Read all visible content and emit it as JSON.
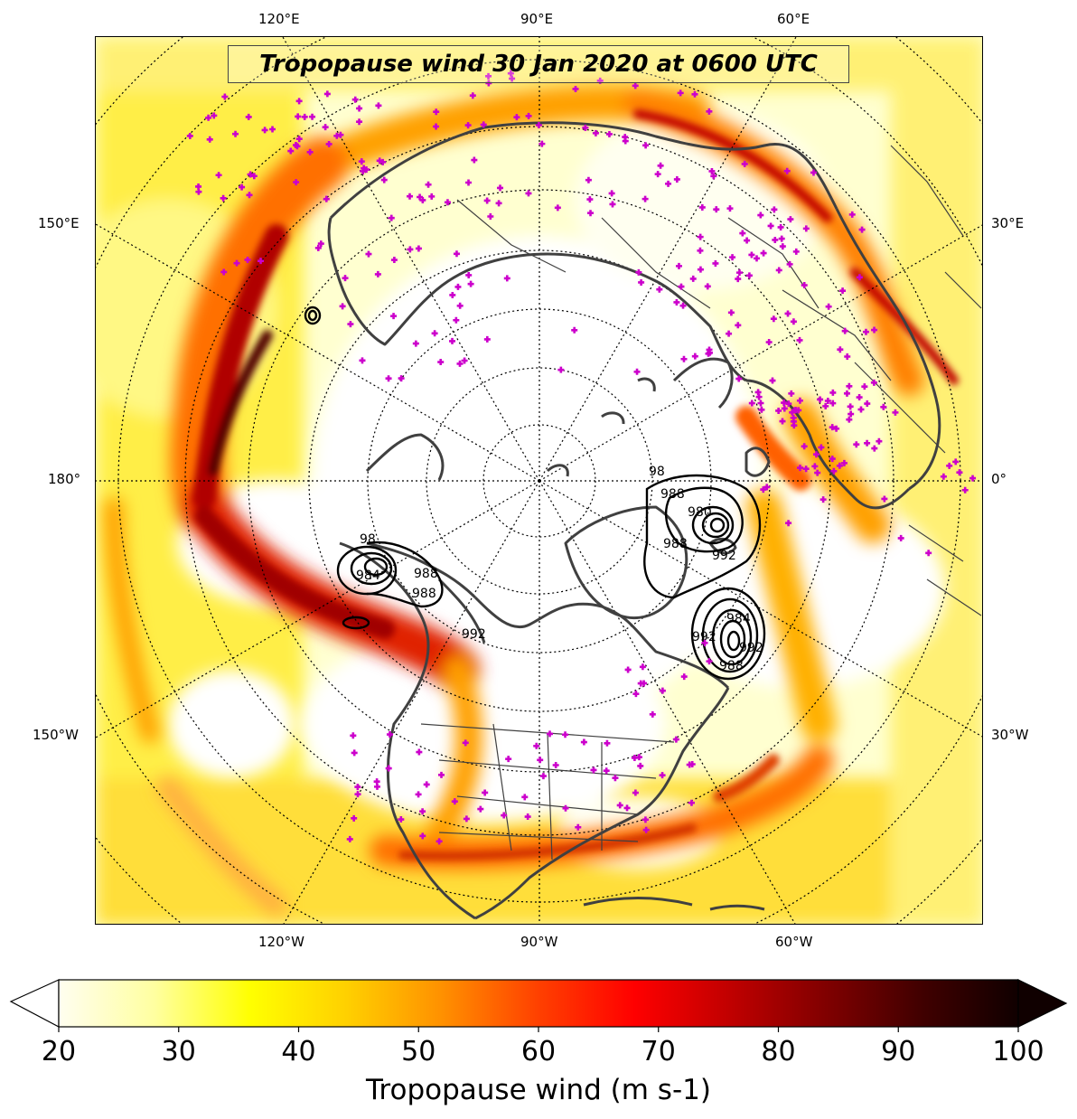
{
  "title": "Tropopause wind 30 Jan 2020 at 0600 UTC",
  "colorbar": {
    "label": "Tropopause wind (m s-1)",
    "min": 20,
    "max": 100,
    "ticks": [
      "20",
      "30",
      "40",
      "50",
      "60",
      "70",
      "80",
      "90",
      "100"
    ],
    "colors": [
      "#fffef0",
      "#ffffa0",
      "#ffff00",
      "#ffd000",
      "#ff9000",
      "#ff4000",
      "#ff0000",
      "#c00000",
      "#800000",
      "#400000",
      "#100000"
    ]
  },
  "longitude_labels": {
    "top": [
      "120°E",
      "90°E",
      "60°E"
    ],
    "bottom": [
      "120°W",
      "90°W",
      "60°W"
    ],
    "left": [
      "150°E",
      "180°",
      "150°W"
    ],
    "right": [
      "30°E",
      "0°",
      "30°W"
    ]
  },
  "pressure_contour_labels": [
    "984",
    "988",
    "992",
    "980",
    "988",
    "992",
    "988",
    "984",
    "992",
    "988",
    "98",
    "98",
    "992",
    "988"
  ],
  "colors": {
    "coastline": "#404040",
    "station_marker": "#cc00cc",
    "contour": "#000000"
  }
}
